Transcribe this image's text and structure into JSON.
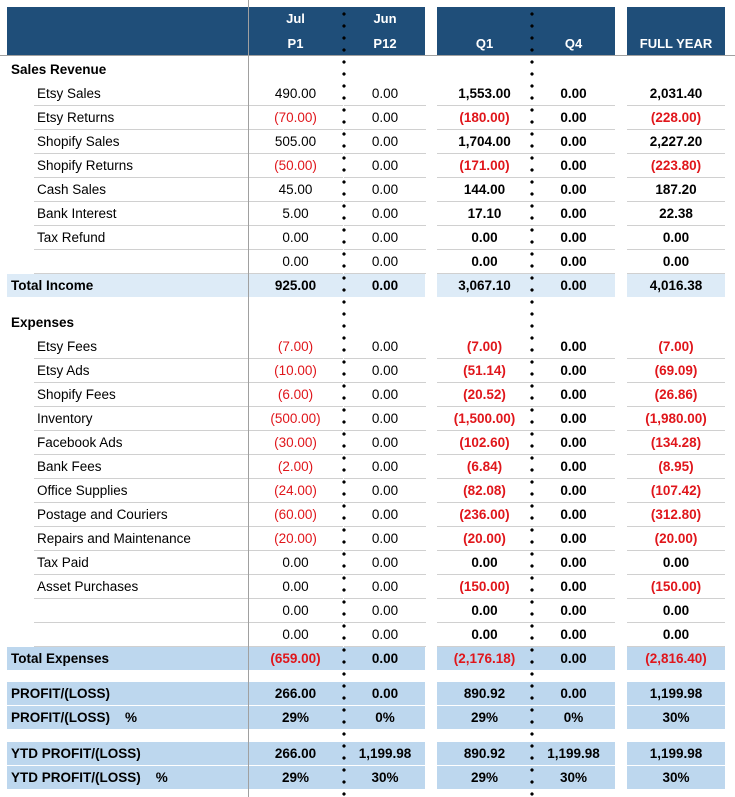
{
  "colors": {
    "header": "#1f4e79",
    "total_income_band": "#ddebf7",
    "total_band": "#bdd7ee",
    "negative": "#e0161b"
  },
  "header": {
    "columns": [
      {
        "top": "Jul",
        "bottom": "P1"
      },
      {
        "top": "Jun",
        "bottom": "P12"
      },
      {
        "top": "",
        "bottom": "Q1"
      },
      {
        "top": "",
        "bottom": "Q4"
      },
      {
        "top": "",
        "bottom": "FULL YEAR"
      }
    ]
  },
  "sections": [
    {
      "title": "Sales Revenue",
      "rows": [
        {
          "label": "Etsy Sales",
          "values": [
            "490.00",
            "0.00",
            "1,553.00",
            "0.00",
            "2,031.40"
          ]
        },
        {
          "label": "Etsy Returns",
          "values": [
            "(70.00)",
            "0.00",
            "(180.00)",
            "0.00",
            "(228.00)"
          ]
        },
        {
          "label": "Shopify Sales",
          "values": [
            "505.00",
            "0.00",
            "1,704.00",
            "0.00",
            "2,227.20"
          ]
        },
        {
          "label": "Shopify Returns",
          "values": [
            "(50.00)",
            "0.00",
            "(171.00)",
            "0.00",
            "(223.80)"
          ]
        },
        {
          "label": "Cash Sales",
          "values": [
            "45.00",
            "0.00",
            "144.00",
            "0.00",
            "187.20"
          ]
        },
        {
          "label": "Bank Interest",
          "values": [
            "5.00",
            "0.00",
            "17.10",
            "0.00",
            "22.38"
          ]
        },
        {
          "label": "Tax Refund",
          "values": [
            "0.00",
            "0.00",
            "0.00",
            "0.00",
            "0.00"
          ]
        },
        {
          "label": "",
          "values": [
            "0.00",
            "0.00",
            "0.00",
            "0.00",
            "0.00"
          ]
        }
      ],
      "total": {
        "label": "Total Income",
        "values": [
          "925.00",
          "0.00",
          "3,067.10",
          "0.00",
          "4,016.38"
        ]
      }
    },
    {
      "title": "Expenses",
      "rows": [
        {
          "label": "Etsy Fees",
          "values": [
            "(7.00)",
            "0.00",
            "(7.00)",
            "0.00",
            "(7.00)"
          ]
        },
        {
          "label": "Etsy Ads",
          "values": [
            "(10.00)",
            "0.00",
            "(51.14)",
            "0.00",
            "(69.09)"
          ]
        },
        {
          "label": "Shopify Fees",
          "values": [
            "(6.00)",
            "0.00",
            "(20.52)",
            "0.00",
            "(26.86)"
          ]
        },
        {
          "label": "Inventory",
          "values": [
            "(500.00)",
            "0.00",
            "(1,500.00)",
            "0.00",
            "(1,980.00)"
          ]
        },
        {
          "label": "Facebook Ads",
          "values": [
            "(30.00)",
            "0.00",
            "(102.60)",
            "0.00",
            "(134.28)"
          ]
        },
        {
          "label": "Bank Fees",
          "values": [
            "(2.00)",
            "0.00",
            "(6.84)",
            "0.00",
            "(8.95)"
          ]
        },
        {
          "label": "Office Supplies",
          "values": [
            "(24.00)",
            "0.00",
            "(82.08)",
            "0.00",
            "(107.42)"
          ]
        },
        {
          "label": "Postage and Couriers",
          "values": [
            "(60.00)",
            "0.00",
            "(236.00)",
            "0.00",
            "(312.80)"
          ]
        },
        {
          "label": "Repairs and Maintenance",
          "values": [
            "(20.00)",
            "0.00",
            "(20.00)",
            "0.00",
            "(20.00)"
          ]
        },
        {
          "label": "Tax Paid",
          "values": [
            "0.00",
            "0.00",
            "0.00",
            "0.00",
            "0.00"
          ]
        },
        {
          "label": "Asset Purchases",
          "values": [
            "0.00",
            "0.00",
            "(150.00)",
            "0.00",
            "(150.00)"
          ]
        },
        {
          "label": "",
          "values": [
            "0.00",
            "0.00",
            "0.00",
            "0.00",
            "0.00"
          ]
        },
        {
          "label": "",
          "values": [
            "0.00",
            "0.00",
            "0.00",
            "0.00",
            "0.00"
          ]
        }
      ],
      "total": {
        "label": "Total Expenses",
        "values": [
          "(659.00)",
          "0.00",
          "(2,176.18)",
          "0.00",
          "(2,816.40)"
        ]
      }
    }
  ],
  "summary": [
    [
      {
        "label": "PROFIT/(LOSS)",
        "values": [
          "266.00",
          "0.00",
          "890.92",
          "0.00",
          "1,199.98"
        ]
      },
      {
        "label": "PROFIT/(LOSS)    %",
        "values": [
          "29%",
          "0%",
          "29%",
          "0%",
          "30%"
        ]
      }
    ],
    [
      {
        "label": "YTD PROFIT/(LOSS)",
        "values": [
          "266.00",
          "1,199.98",
          "890.92",
          "1,199.98",
          "1,199.98"
        ]
      },
      {
        "label": "YTD PROFIT/(LOSS)    %",
        "values": [
          "29%",
          "30%",
          "29%",
          "30%",
          "30%"
        ]
      }
    ]
  ]
}
